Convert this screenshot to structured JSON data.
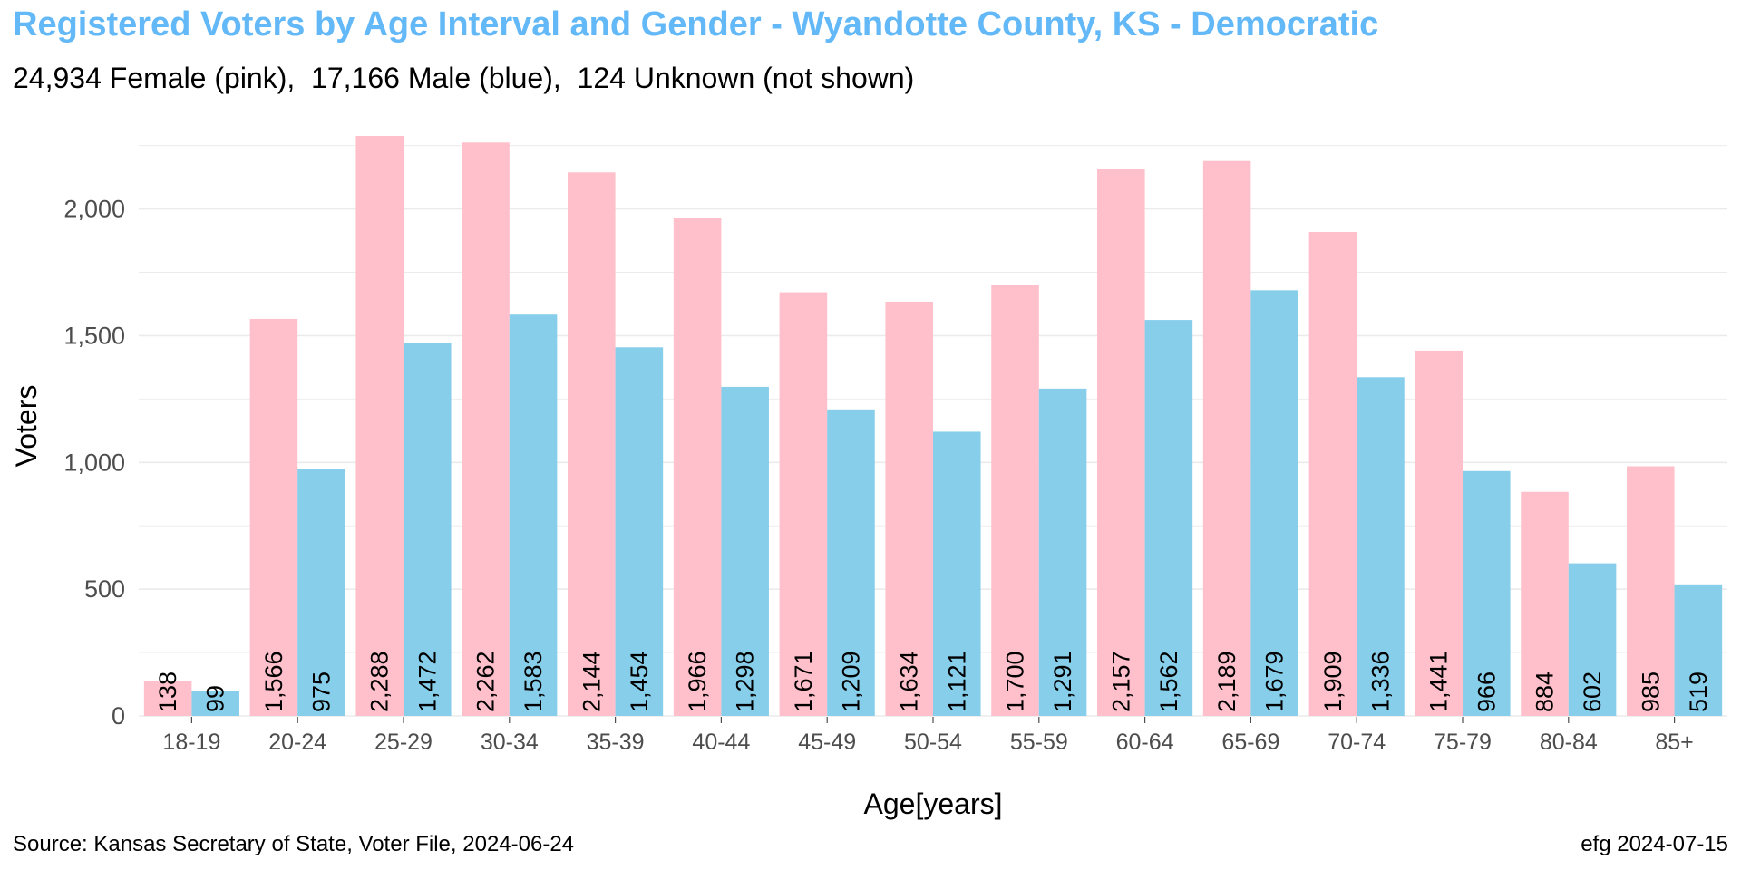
{
  "title": "Registered Voters by Age Interval and Gender - Wyandotte County, KS - Democratic",
  "subtitle": "24,934 Female (pink),  17,166 Male (blue),  124 Unknown (not shown)",
  "footer": {
    "source": "Source: Kansas Secretary of State, Voter File, 2024-06-24",
    "credit": "efg 2024-07-15"
  },
  "colors": {
    "female": "#ffc0cb",
    "male": "#87ceeb",
    "grid": "#ebebeb",
    "title": "#63b8f7"
  },
  "chart_data": {
    "type": "bar",
    "xlabel": "Age[years]",
    "ylabel": "Voters",
    "ylim": [
      0,
      2288
    ],
    "yticks": [
      0,
      500,
      1000,
      1500,
      2000
    ],
    "ytick_labels": [
      "0",
      "500",
      "1,000",
      "1,500",
      "2,000"
    ],
    "grid": true,
    "legend": "none",
    "categories": [
      "18-19",
      "20-24",
      "25-29",
      "30-34",
      "35-39",
      "40-44",
      "45-49",
      "50-54",
      "55-59",
      "60-64",
      "65-69",
      "70-74",
      "75-79",
      "80-84",
      "85+"
    ],
    "series": [
      {
        "color": "#ffc0cb",
        "values": [
          138,
          1566,
          2288,
          2262,
          2144,
          1966,
          1671,
          1634,
          1700,
          2157,
          2189,
          1909,
          1441,
          884,
          985
        ],
        "labels": [
          "138",
          "1,566",
          "2,288",
          "2,262",
          "2,144",
          "1,966",
          "1,671",
          "1,634",
          "1,700",
          "2,157",
          "2,189",
          "1,909",
          "1,441",
          "884",
          "985"
        ]
      },
      {
        "color": "#87ceeb",
        "values": [
          99,
          975,
          1472,
          1583,
          1454,
          1298,
          1209,
          1121,
          1291,
          1562,
          1679,
          1336,
          966,
          602,
          519
        ],
        "labels": [
          "99",
          "975",
          "1,472",
          "1,583",
          "1,454",
          "1,298",
          "1,209",
          "1,121",
          "1,291",
          "1,562",
          "1,679",
          "1,336",
          "966",
          "602",
          "519"
        ]
      }
    ]
  }
}
